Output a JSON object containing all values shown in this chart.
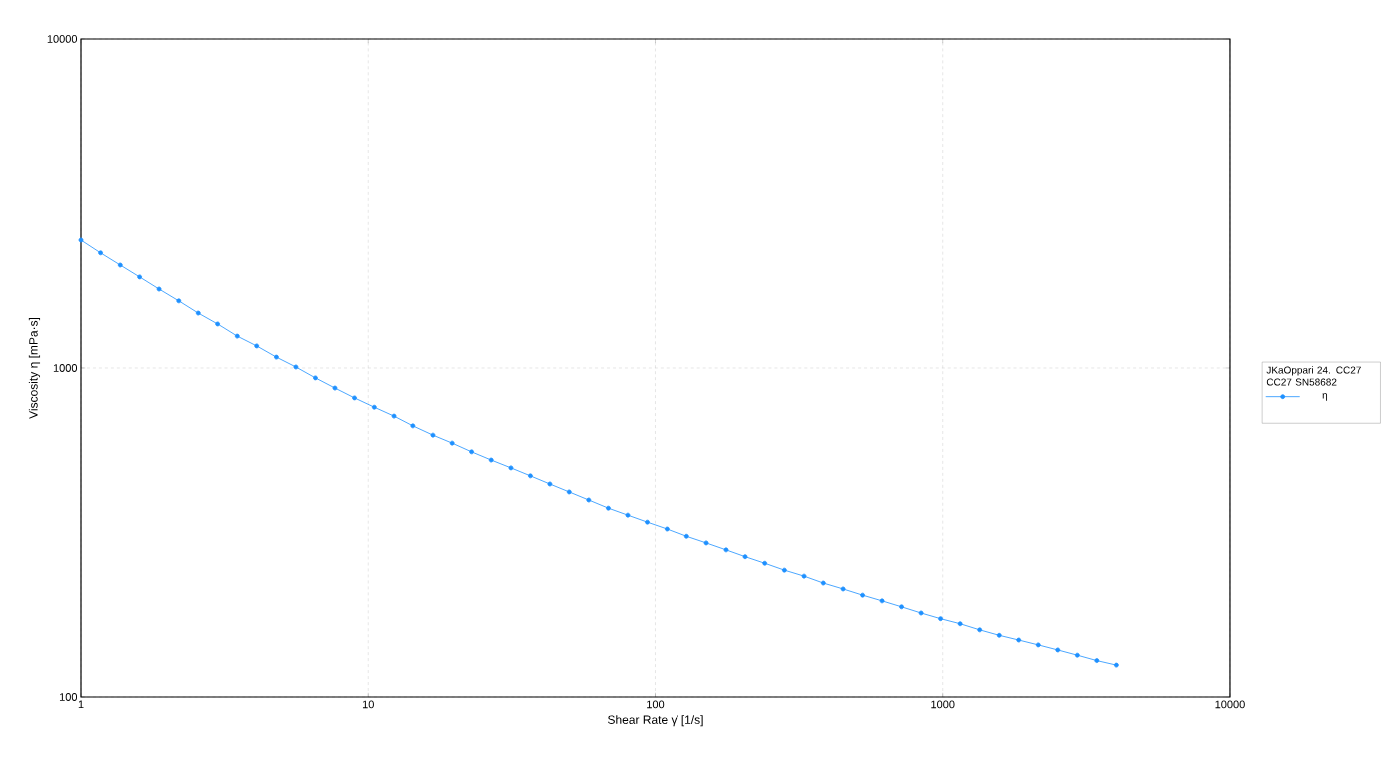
{
  "chart_data": {
    "type": "line",
    "xlabel": "Shear Rate γ̇ [1/s]",
    "ylabel": "Viscosity η [mPa·s]",
    "legend_title": "JKaOppari 24. CC27 CC27 SN58682",
    "log": "xy",
    "grid": true,
    "legend": "right",
    "marker": "circle",
    "line_style": "solid",
    "xlim": [
      1,
      10000
    ],
    "ylim": [
      100,
      10000
    ],
    "xticks": [
      1,
      10,
      100,
      1000,
      10000
    ],
    "yticks": [
      100,
      1000,
      10000
    ],
    "x": [
      1.0,
      1.17,
      1.37,
      1.6,
      1.87,
      2.19,
      2.56,
      2.99,
      3.5,
      4.09,
      4.79,
      5.6,
      6.55,
      7.66,
      8.96,
      10.5,
      12.3,
      14.3,
      16.8,
      19.6,
      22.9,
      26.8,
      31.4,
      36.7,
      42.9,
      50.1,
      58.6,
      68.6,
      80.2,
      93.8,
      110,
      128,
      150,
      176,
      205,
      240,
      281,
      329,
      384,
      450,
      526,
      615,
      719,
      841,
      983,
      1150,
      1345,
      1573,
      1839,
      2151,
      2515,
      2942,
      3440,
      4023
    ],
    "series": [
      {
        "name": "η",
        "color": "#1e90ff",
        "values": [
          2449,
          2239,
          2056,
          1892,
          1738,
          1600,
          1469,
          1361,
          1250,
          1167,
          1079,
          1007,
          933,
          869,
          811,
          760,
          714,
          667,
          625,
          591,
          556,
          525,
          497,
          470,
          444,
          420,
          397,
          375,
          357,
          340,
          324,
          308,
          294,
          280,
          267,
          255,
          243,
          233,
          222,
          213,
          204,
          196,
          188,
          180,
          173,
          167,
          160,
          154,
          149,
          144,
          139,
          134,
          129,
          125
        ]
      }
    ]
  }
}
